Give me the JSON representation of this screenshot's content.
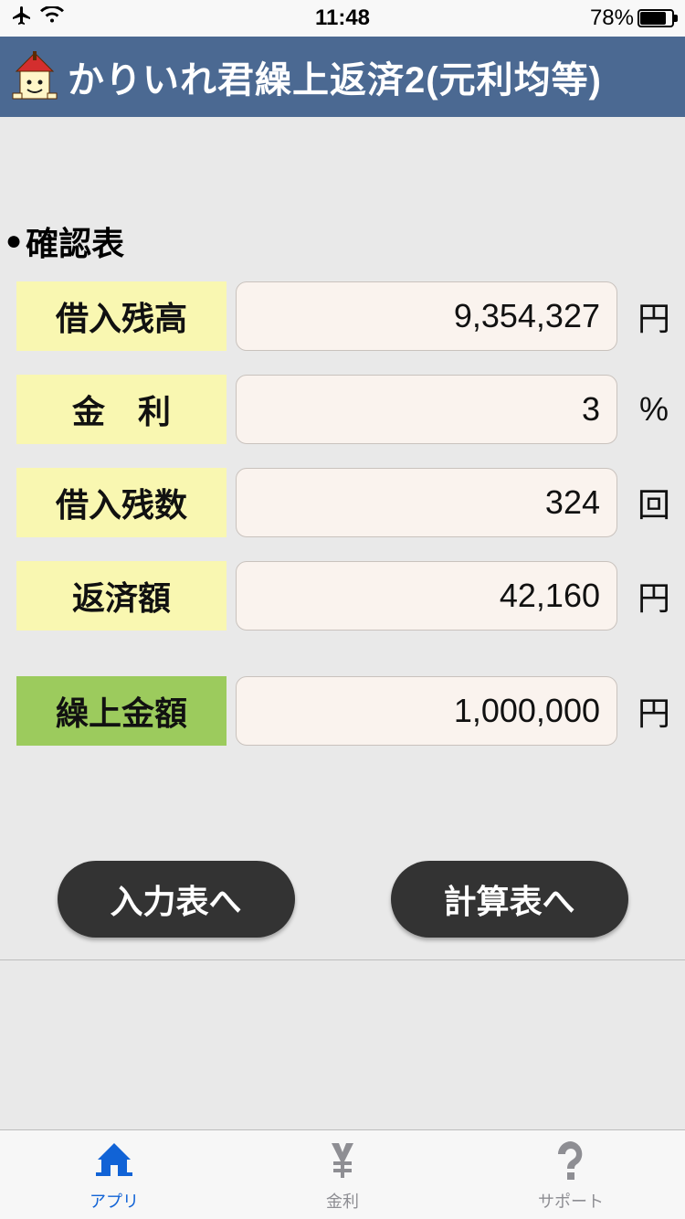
{
  "status_bar": {
    "time": "11:48",
    "battery_pct": "78%",
    "battery_fill_pct": 78
  },
  "header": {
    "title": "かりいれ君繰上返済2(元利均等)"
  },
  "colors": {
    "header_bg": "#4b6992",
    "label_bg": "#f9f7b1",
    "label_green_bg": "#9ccb5d",
    "value_bg": "#faf3ee",
    "value_border": "#c9c2bd",
    "body_bg": "#e9e9e9",
    "button_bg": "#333333",
    "tab_active": "#1163d6",
    "tab_inactive": "#8e8e93"
  },
  "section": {
    "title": "確認表"
  },
  "rows": [
    {
      "label": "借入残高",
      "value": "9,354,327",
      "unit": "円",
      "label_color": "yellow"
    },
    {
      "label": "金　利",
      "value": "3",
      "unit": "%",
      "label_color": "yellow"
    },
    {
      "label": "借入残数",
      "value": "324",
      "unit": "回",
      "label_color": "yellow"
    },
    {
      "label": "返済額",
      "value": "42,160",
      "unit": "円",
      "label_color": "yellow"
    },
    {
      "label": "繰上金額",
      "value": "1,000,000",
      "unit": "円",
      "label_color": "green"
    }
  ],
  "buttons": {
    "back": "入力表へ",
    "calc": "計算表へ"
  },
  "tabs": [
    {
      "label": "アプリ",
      "icon": "house",
      "active": true
    },
    {
      "label": "金利",
      "icon": "yen",
      "active": false
    },
    {
      "label": "サポート",
      "icon": "help",
      "active": false
    }
  ]
}
